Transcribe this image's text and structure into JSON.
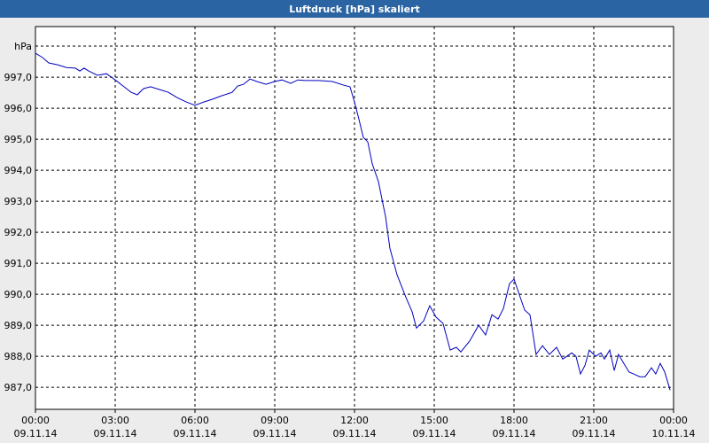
{
  "chart_data": {
    "type": "line",
    "title": "Luftdruck [hPa] skaliert",
    "x": [
      0,
      0.27,
      0.5,
      0.83,
      1.17,
      1.5,
      1.67,
      1.83,
      2,
      2.33,
      2.67,
      3,
      3.33,
      3.6,
      3.83,
      4.07,
      4.33,
      4.67,
      5,
      5.33,
      5.67,
      6,
      6.33,
      6.67,
      7,
      7.4,
      7.6,
      7.83,
      8.07,
      8.33,
      8.67,
      9,
      9.27,
      9.6,
      9.87,
      10.17,
      10.67,
      11.17,
      11.6,
      11.83,
      12,
      12.17,
      12.33,
      12.5,
      12.67,
      12.9,
      13.17,
      13.33,
      13.6,
      13.93,
      14.17,
      14.33,
      14.6,
      14.83,
      15.07,
      15.33,
      15.6,
      15.83,
      16,
      16.33,
      16.67,
      16.93,
      17.17,
      17.4,
      17.6,
      17.83,
      18,
      18.17,
      18.4,
      18.6,
      18.83,
      19.07,
      19.33,
      19.6,
      19.83,
      20.17,
      20.33,
      20.5,
      20.67,
      20.83,
      21.07,
      21.27,
      21.4,
      21.6,
      21.77,
      21.93,
      22.17,
      22.33,
      22.5,
      22.73,
      22.93,
      23.17,
      23.33,
      23.5,
      23.67,
      23.87
    ],
    "series": [
      {
        "name": "Luftdruck",
        "color": "#0000c0",
        "values": [
          997.77,
          997.63,
          997.46,
          997.4,
          997.31,
          997.29,
          997.2,
          997.29,
          997.2,
          997.06,
          997.11,
          996.91,
          996.69,
          996.51,
          996.43,
          996.63,
          996.69,
          996.6,
          996.51,
          996.34,
          996.2,
          996.09,
          996.2,
          996.29,
          996.4,
          996.51,
          996.71,
          996.77,
          996.94,
          996.86,
          996.77,
          996.86,
          996.91,
          996.8,
          996.91,
          996.89,
          996.89,
          996.86,
          996.74,
          996.69,
          996.2,
          995.63,
          995.06,
          994.91,
          994.2,
          993.63,
          992.49,
          991.49,
          990.63,
          989.91,
          989.43,
          988.91,
          989.14,
          989.63,
          989.26,
          989.06,
          988.2,
          988.29,
          988.14,
          988.49,
          989.0,
          988.69,
          989.34,
          989.2,
          989.54,
          990.34,
          990.49,
          990.06,
          989.49,
          989.34,
          988.06,
          988.34,
          988.06,
          988.29,
          987.91,
          988.11,
          988.0,
          987.43,
          987.71,
          988.2,
          988.0,
          988.11,
          987.91,
          988.2,
          987.54,
          988.06,
          987.71,
          987.49,
          987.43,
          987.34,
          987.34,
          987.63,
          987.43,
          987.77,
          987.49,
          986.91
        ]
      }
    ],
    "xlim": [
      0,
      24
    ],
    "ylim": [
      986.29,
      998.63
    ],
    "xticks": [
      {
        "value": 0,
        "label": "00:00",
        "date": "09.11.14"
      },
      {
        "value": 3,
        "label": "03:00",
        "date": "09.11.14"
      },
      {
        "value": 6,
        "label": "06:00",
        "date": "09.11.14"
      },
      {
        "value": 9,
        "label": "09:00",
        "date": "09.11.14"
      },
      {
        "value": 12,
        "label": "12:00",
        "date": "09.11.14"
      },
      {
        "value": 15,
        "label": "15:00",
        "date": "09.11.14"
      },
      {
        "value": 18,
        "label": "18:00",
        "date": "09.11.14"
      },
      {
        "value": 21,
        "label": "21:00",
        "date": "09.11.14"
      },
      {
        "value": 24,
        "label": "00:00",
        "date": "10.11.14"
      }
    ],
    "yticks": [
      {
        "value": 987,
        "label": "987,0"
      },
      {
        "value": 988,
        "label": "988,0"
      },
      {
        "value": 989,
        "label": "989,0"
      },
      {
        "value": 990,
        "label": "990,0"
      },
      {
        "value": 991,
        "label": "991,0"
      },
      {
        "value": 992,
        "label": "992,0"
      },
      {
        "value": 993,
        "label": "993,0"
      },
      {
        "value": 994,
        "label": "994,0"
      },
      {
        "value": 995,
        "label": "995,0"
      },
      {
        "value": 996,
        "label": "996,0"
      },
      {
        "value": 997,
        "label": "997,0"
      },
      {
        "value": 998,
        "label": "hPa"
      }
    ],
    "grid": true
  }
}
